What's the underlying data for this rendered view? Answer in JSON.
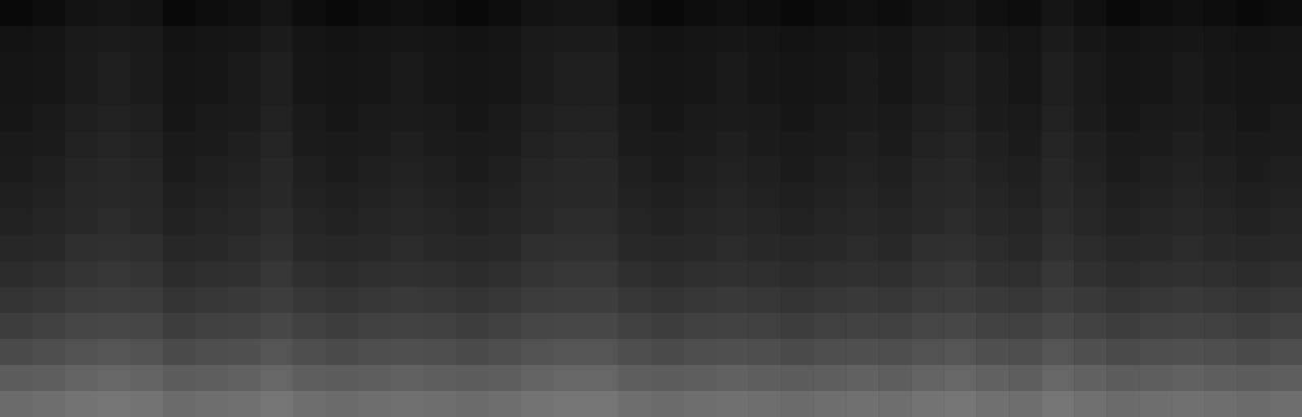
{
  "chart_data": {
    "type": "heatmap",
    "color": "#ffffff",
    "grid": false,
    "tick_labels": false,
    "cells": [
      [
        0.04,
        0.05,
        0.07,
        0.08,
        0.07,
        0.04,
        0.05,
        0.06,
        0.08,
        0.05,
        0.04,
        0.05,
        0.06,
        0.05,
        0.04,
        0.05,
        0.07,
        0.08,
        0.08,
        0.05,
        0.04,
        0.05,
        0.06,
        0.05,
        0.04,
        0.05,
        0.06,
        0.05,
        0.07,
        0.08,
        0.06,
        0.05,
        0.08,
        0.06,
        0.04,
        0.05,
        0.06,
        0.05,
        0.04,
        0.05
      ],
      [
        0.07,
        0.08,
        0.1,
        0.11,
        0.1,
        0.07,
        0.08,
        0.09,
        0.11,
        0.08,
        0.07,
        0.08,
        0.09,
        0.08,
        0.07,
        0.08,
        0.1,
        0.11,
        0.11,
        0.08,
        0.07,
        0.08,
        0.09,
        0.08,
        0.07,
        0.08,
        0.09,
        0.08,
        0.1,
        0.11,
        0.09,
        0.08,
        0.11,
        0.09,
        0.07,
        0.08,
        0.09,
        0.08,
        0.07,
        0.08
      ],
      [
        0.08,
        0.09,
        0.11,
        0.12,
        0.11,
        0.08,
        0.09,
        0.1,
        0.12,
        0.09,
        0.08,
        0.09,
        0.1,
        0.09,
        0.08,
        0.09,
        0.11,
        0.12,
        0.12,
        0.09,
        0.08,
        0.09,
        0.1,
        0.09,
        0.08,
        0.09,
        0.1,
        0.09,
        0.11,
        0.12,
        0.1,
        0.09,
        0.12,
        0.1,
        0.08,
        0.09,
        0.1,
        0.09,
        0.08,
        0.09
      ],
      [
        0.08,
        0.09,
        0.11,
        0.12,
        0.11,
        0.08,
        0.09,
        0.1,
        0.12,
        0.09,
        0.08,
        0.09,
        0.1,
        0.09,
        0.08,
        0.09,
        0.11,
        0.12,
        0.12,
        0.09,
        0.08,
        0.09,
        0.1,
        0.09,
        0.08,
        0.09,
        0.1,
        0.09,
        0.11,
        0.12,
        0.1,
        0.09,
        0.12,
        0.1,
        0.08,
        0.09,
        0.1,
        0.09,
        0.08,
        0.09
      ],
      [
        0.09,
        0.1,
        0.12,
        0.13,
        0.12,
        0.09,
        0.1,
        0.11,
        0.13,
        0.1,
        0.09,
        0.1,
        0.11,
        0.1,
        0.09,
        0.1,
        0.12,
        0.13,
        0.13,
        0.1,
        0.09,
        0.1,
        0.11,
        0.1,
        0.09,
        0.1,
        0.11,
        0.1,
        0.12,
        0.13,
        0.11,
        0.1,
        0.13,
        0.11,
        0.09,
        0.1,
        0.11,
        0.1,
        0.09,
        0.1
      ],
      [
        0.1,
        0.11,
        0.13,
        0.14,
        0.13,
        0.1,
        0.11,
        0.12,
        0.14,
        0.11,
        0.1,
        0.11,
        0.12,
        0.11,
        0.1,
        0.11,
        0.13,
        0.14,
        0.14,
        0.11,
        0.1,
        0.11,
        0.12,
        0.11,
        0.1,
        0.11,
        0.12,
        0.11,
        0.13,
        0.14,
        0.12,
        0.11,
        0.14,
        0.12,
        0.1,
        0.11,
        0.12,
        0.11,
        0.1,
        0.11
      ],
      [
        0.11,
        0.12,
        0.14,
        0.15,
        0.14,
        0.11,
        0.12,
        0.13,
        0.15,
        0.12,
        0.11,
        0.12,
        0.13,
        0.12,
        0.11,
        0.12,
        0.14,
        0.15,
        0.15,
        0.12,
        0.11,
        0.12,
        0.13,
        0.12,
        0.11,
        0.12,
        0.13,
        0.12,
        0.14,
        0.15,
        0.13,
        0.12,
        0.15,
        0.13,
        0.11,
        0.12,
        0.13,
        0.12,
        0.11,
        0.12
      ],
      [
        0.12,
        0.13,
        0.15,
        0.16,
        0.15,
        0.12,
        0.13,
        0.14,
        0.16,
        0.13,
        0.12,
        0.13,
        0.14,
        0.13,
        0.12,
        0.13,
        0.15,
        0.16,
        0.16,
        0.13,
        0.12,
        0.13,
        0.14,
        0.13,
        0.12,
        0.13,
        0.14,
        0.13,
        0.15,
        0.16,
        0.14,
        0.13,
        0.16,
        0.14,
        0.12,
        0.13,
        0.14,
        0.13,
        0.12,
        0.13
      ],
      [
        0.13,
        0.14,
        0.16,
        0.17,
        0.16,
        0.13,
        0.14,
        0.15,
        0.17,
        0.14,
        0.13,
        0.14,
        0.15,
        0.14,
        0.13,
        0.14,
        0.16,
        0.17,
        0.17,
        0.14,
        0.13,
        0.14,
        0.15,
        0.14,
        0.13,
        0.14,
        0.15,
        0.14,
        0.16,
        0.17,
        0.15,
        0.14,
        0.17,
        0.15,
        0.13,
        0.14,
        0.15,
        0.14,
        0.13,
        0.14
      ],
      [
        0.15,
        0.16,
        0.18,
        0.19,
        0.18,
        0.15,
        0.16,
        0.17,
        0.19,
        0.16,
        0.15,
        0.16,
        0.17,
        0.16,
        0.15,
        0.16,
        0.18,
        0.19,
        0.19,
        0.16,
        0.15,
        0.16,
        0.17,
        0.16,
        0.15,
        0.16,
        0.17,
        0.16,
        0.18,
        0.19,
        0.17,
        0.16,
        0.19,
        0.17,
        0.15,
        0.16,
        0.17,
        0.16,
        0.15,
        0.16
      ],
      [
        0.17,
        0.18,
        0.2,
        0.21,
        0.2,
        0.17,
        0.18,
        0.19,
        0.21,
        0.18,
        0.17,
        0.18,
        0.19,
        0.18,
        0.17,
        0.18,
        0.2,
        0.21,
        0.21,
        0.18,
        0.17,
        0.18,
        0.19,
        0.18,
        0.17,
        0.18,
        0.19,
        0.18,
        0.2,
        0.21,
        0.19,
        0.18,
        0.21,
        0.19,
        0.17,
        0.18,
        0.19,
        0.18,
        0.17,
        0.18
      ],
      [
        0.2,
        0.21,
        0.23,
        0.24,
        0.23,
        0.2,
        0.21,
        0.22,
        0.24,
        0.21,
        0.2,
        0.21,
        0.22,
        0.21,
        0.2,
        0.21,
        0.23,
        0.24,
        0.24,
        0.21,
        0.2,
        0.21,
        0.22,
        0.21,
        0.2,
        0.21,
        0.22,
        0.21,
        0.23,
        0.24,
        0.22,
        0.21,
        0.24,
        0.22,
        0.2,
        0.21,
        0.22,
        0.21,
        0.2,
        0.21
      ],
      [
        0.24,
        0.25,
        0.27,
        0.28,
        0.27,
        0.24,
        0.25,
        0.26,
        0.28,
        0.25,
        0.24,
        0.25,
        0.26,
        0.25,
        0.24,
        0.25,
        0.27,
        0.28,
        0.28,
        0.25,
        0.24,
        0.25,
        0.26,
        0.25,
        0.24,
        0.25,
        0.26,
        0.25,
        0.27,
        0.28,
        0.26,
        0.25,
        0.28,
        0.26,
        0.24,
        0.25,
        0.26,
        0.25,
        0.24,
        0.25
      ],
      [
        0.29,
        0.3,
        0.32,
        0.33,
        0.32,
        0.29,
        0.3,
        0.31,
        0.33,
        0.3,
        0.29,
        0.3,
        0.31,
        0.3,
        0.29,
        0.3,
        0.32,
        0.33,
        0.33,
        0.3,
        0.29,
        0.3,
        0.31,
        0.3,
        0.29,
        0.3,
        0.31,
        0.3,
        0.32,
        0.33,
        0.31,
        0.3,
        0.33,
        0.31,
        0.29,
        0.3,
        0.31,
        0.3,
        0.29,
        0.3
      ],
      [
        0.36,
        0.37,
        0.39,
        0.4,
        0.39,
        0.36,
        0.37,
        0.38,
        0.4,
        0.37,
        0.36,
        0.37,
        0.38,
        0.37,
        0.36,
        0.37,
        0.39,
        0.4,
        0.4,
        0.37,
        0.36,
        0.37,
        0.38,
        0.37,
        0.36,
        0.37,
        0.38,
        0.37,
        0.39,
        0.4,
        0.38,
        0.37,
        0.4,
        0.38,
        0.36,
        0.37,
        0.38,
        0.37,
        0.36,
        0.37
      ],
      [
        0.42,
        0.43,
        0.45,
        0.46,
        0.45,
        0.42,
        0.43,
        0.44,
        0.46,
        0.43,
        0.42,
        0.43,
        0.44,
        0.43,
        0.42,
        0.43,
        0.45,
        0.46,
        0.46,
        0.43,
        0.42,
        0.43,
        0.44,
        0.43,
        0.42,
        0.43,
        0.44,
        0.43,
        0.45,
        0.46,
        0.44,
        0.43,
        0.46,
        0.44,
        0.42,
        0.43,
        0.44,
        0.43,
        0.42,
        0.43
      ]
    ]
  }
}
